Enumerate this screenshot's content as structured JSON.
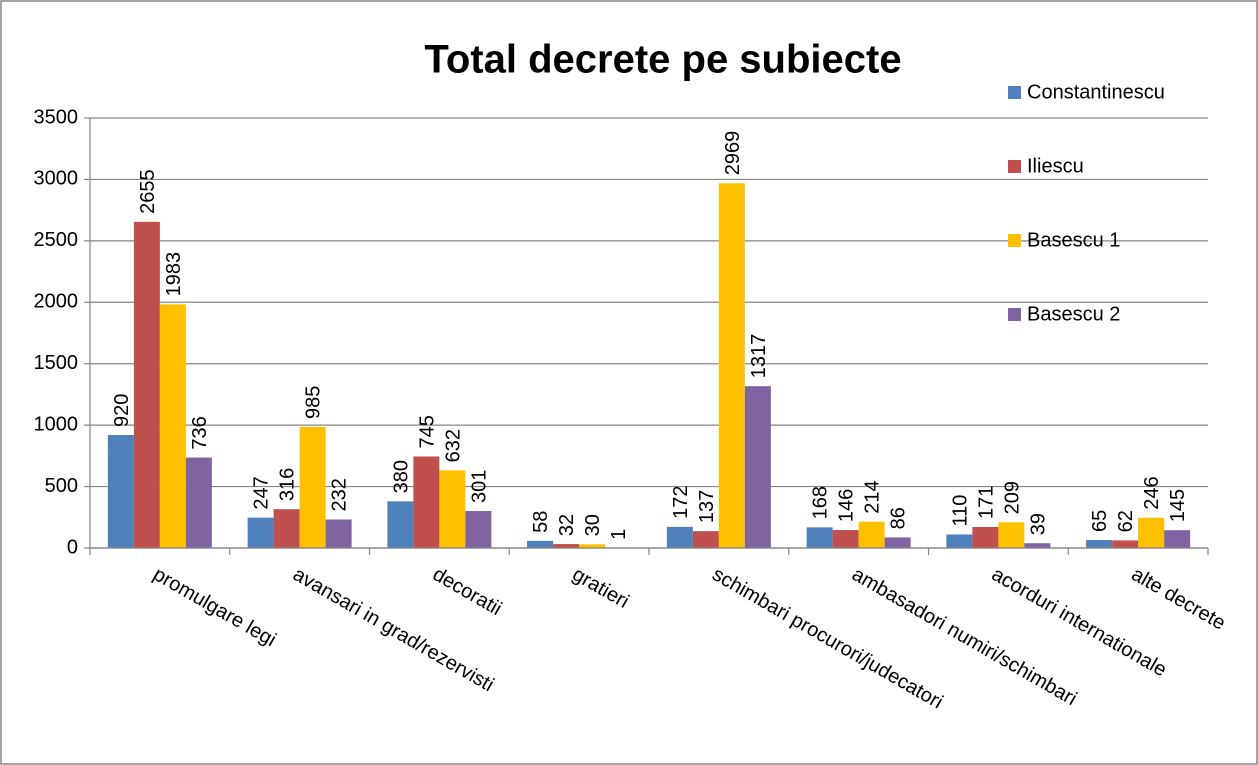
{
  "chart_data": {
    "type": "bar",
    "title": "Total decrete pe subiecte",
    "categories": [
      "promulgare legi",
      "avansari in grad/rezervisti",
      "decoratii",
      "gratieri",
      "schimbari procurori/judecatori",
      "ambasadori numiri/schimbari",
      "acorduri internationale",
      "alte decrete"
    ],
    "series": [
      {
        "name": "Constantinescu",
        "color": "#4f81bd",
        "values": [
          920,
          247,
          380,
          58,
          172,
          168,
          110,
          65
        ]
      },
      {
        "name": "Iliescu",
        "color": "#c0504d",
        "values": [
          2655,
          316,
          745,
          32,
          137,
          146,
          171,
          62
        ]
      },
      {
        "name": "Basescu 1",
        "color": "#ffc000",
        "values": [
          1983,
          985,
          632,
          30,
          2969,
          214,
          209,
          246
        ]
      },
      {
        "name": "Basescu 2",
        "color": "#8064a2",
        "values": [
          736,
          232,
          301,
          1,
          1317,
          86,
          39,
          145
        ]
      }
    ],
    "ylim": [
      0,
      3500
    ],
    "yticks": [
      0,
      500,
      1000,
      1500,
      2000,
      2500,
      3000,
      3500
    ],
    "grid": true,
    "legend": "right"
  }
}
